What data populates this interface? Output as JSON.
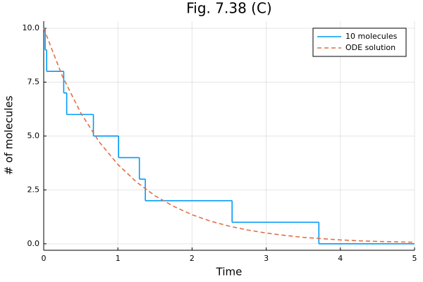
{
  "chart_data": {
    "type": "line",
    "title": "Fig. 7.38 (C)",
    "x_label": "Time",
    "y_label": "# of molecules",
    "xlim": [
      0,
      5
    ],
    "ylim": [
      -0.3,
      10.33
    ],
    "xticks": [
      0,
      1,
      2,
      3,
      4,
      5
    ],
    "yticks": [
      {
        "value": 0,
        "label": "0.0"
      },
      2.5,
      {
        "value": 5,
        "label": "5.0"
      },
      7.5,
      {
        "value": 10,
        "label": "10.0"
      }
    ],
    "grid": true,
    "legend": "top-right",
    "series": [
      {
        "name": "10 molecules",
        "color": "#009afa",
        "step": "post",
        "dash": false,
        "x": [
          0,
          0.02,
          0.04,
          0.27,
          0.31,
          0.67,
          1.01,
          1.29,
          1.37,
          2.54,
          3.71,
          5
        ],
        "values": [
          10,
          9,
          8,
          7,
          6,
          5,
          4,
          3,
          2,
          1,
          0,
          0
        ]
      },
      {
        "name": "ODE solution",
        "color": "#e26f46",
        "dash": true,
        "x": [
          0,
          0.25,
          0.5,
          0.75,
          1,
          1.25,
          1.5,
          1.75,
          2,
          2.25,
          2.5,
          2.75,
          3,
          3.25,
          3.5,
          3.75,
          4,
          4.25,
          4.5,
          4.75,
          5
        ],
        "values": [
          10,
          7.79,
          6.07,
          4.72,
          3.68,
          2.87,
          2.23,
          1.74,
          1.35,
          1.05,
          0.82,
          0.64,
          0.5,
          0.39,
          0.3,
          0.24,
          0.18,
          0.14,
          0.11,
          0.09,
          0.07
        ]
      }
    ]
  }
}
